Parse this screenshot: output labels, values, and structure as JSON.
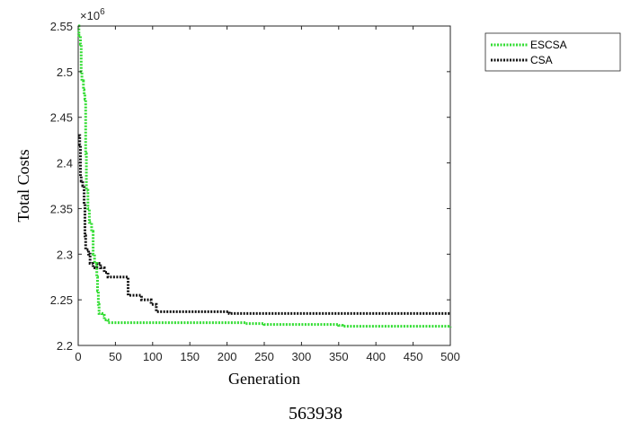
{
  "chart_data": {
    "type": "line",
    "title": "",
    "xlabel": "Generation",
    "ylabel": "Total Costs",
    "y_multiplier_label": "×10",
    "y_multiplier_exponent": "6",
    "xlim": [
      0,
      500
    ],
    "ylim": [
      2.2,
      2.55
    ],
    "xticks": [
      0,
      50,
      100,
      150,
      200,
      250,
      300,
      350,
      400,
      450,
      500
    ],
    "yticks": [
      "2.2",
      "2.25",
      "2.3",
      "2.35",
      "2.4",
      "2.45",
      "2.5",
      "2.55"
    ],
    "yticks_values": [
      2.2,
      2.25,
      2.3,
      2.35,
      2.4,
      2.45,
      2.5,
      2.55
    ],
    "grid": false,
    "legend_position": "top-right",
    "series": [
      {
        "name": "ESCSA",
        "color": "#33dd33",
        "points": [
          [
            0,
            2.55
          ],
          [
            1,
            2.54
          ],
          [
            3,
            2.53
          ],
          [
            4,
            2.5
          ],
          [
            5,
            2.49
          ],
          [
            7,
            2.48
          ],
          [
            8,
            2.475
          ],
          [
            9,
            2.47
          ],
          [
            10,
            2.41
          ],
          [
            11,
            2.37
          ],
          [
            13,
            2.35
          ],
          [
            15,
            2.335
          ],
          [
            18,
            2.325
          ],
          [
            20,
            2.3
          ],
          [
            22,
            2.29
          ],
          [
            25,
            2.275
          ],
          [
            26,
            2.26
          ],
          [
            27,
            2.245
          ],
          [
            28,
            2.235
          ],
          [
            32,
            2.233
          ],
          [
            35,
            2.228
          ],
          [
            40,
            2.225
          ],
          [
            100,
            2.225
          ],
          [
            150,
            2.225
          ],
          [
            200,
            2.225
          ],
          [
            225,
            2.224
          ],
          [
            250,
            2.223
          ],
          [
            300,
            2.223
          ],
          [
            350,
            2.222
          ],
          [
            355,
            2.221
          ],
          [
            400,
            2.221
          ],
          [
            450,
            2.221
          ],
          [
            500,
            2.22
          ]
        ]
      },
      {
        "name": "CSA",
        "color": "#111111",
        "points": [
          [
            0,
            2.43
          ],
          [
            2,
            2.42
          ],
          [
            3,
            2.385
          ],
          [
            4,
            2.38
          ],
          [
            6,
            2.375
          ],
          [
            8,
            2.355
          ],
          [
            9,
            2.32
          ],
          [
            10,
            2.305
          ],
          [
            14,
            2.3
          ],
          [
            16,
            2.29
          ],
          [
            20,
            2.285
          ],
          [
            25,
            2.29
          ],
          [
            30,
            2.285
          ],
          [
            35,
            2.28
          ],
          [
            40,
            2.275
          ],
          [
            50,
            2.275
          ],
          [
            67,
            2.275
          ],
          [
            67,
            2.255
          ],
          [
            85,
            2.255
          ],
          [
            85,
            2.25
          ],
          [
            95,
            2.25
          ],
          [
            98,
            2.245
          ],
          [
            102,
            2.245
          ],
          [
            105,
            2.237
          ],
          [
            150,
            2.237
          ],
          [
            200,
            2.237
          ],
          [
            203,
            2.235
          ],
          [
            300,
            2.235
          ],
          [
            400,
            2.235
          ],
          [
            500,
            2.235
          ]
        ]
      }
    ]
  },
  "caption": "563938"
}
